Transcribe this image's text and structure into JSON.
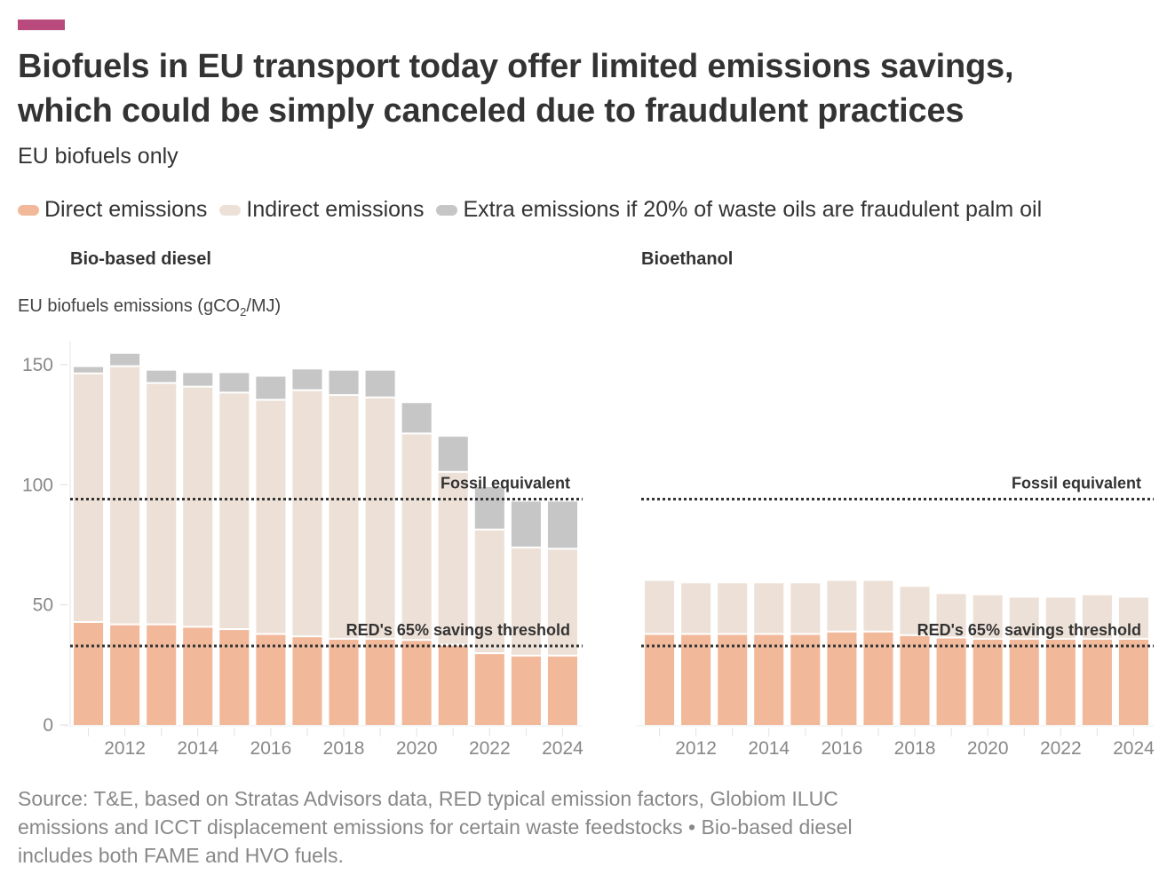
{
  "header": {
    "title_line1": "Biofuels in EU transport today offer limited emissions savings,",
    "title_line2": "which could be simply canceled due to fraudulent practices",
    "subtitle": "EU biofuels only",
    "accent_color": "#b94a7d"
  },
  "legend": [
    {
      "label": "Direct emissions",
      "color": "#f2b89a"
    },
    {
      "label": "Indirect emissions",
      "color": "#ede1d7"
    },
    {
      "label": "Extra emissions if 20% of waste oils are fraudulent palm oil",
      "color": "#c6c6c6"
    }
  ],
  "axis_title": {
    "text": "EU biofuels emissions (gCO",
    "sub": "2",
    "suffix": "/MJ)"
  },
  "footer": {
    "line1": "Source: T&E, based on Stratas Advisors data, RED typical emission factors, Globiom ILUC",
    "line2": "emissions and ICCT displacement emissions for certain waste feedstocks • Bio-based diesel",
    "line3": "includes both FAME and HVO fuels."
  },
  "chart_data": [
    {
      "type": "bar",
      "stacked": true,
      "title": "Bio-based diesel",
      "ylabel": "EU biofuels emissions (gCO2/MJ)",
      "ylim": [
        0,
        160
      ],
      "yticks": [
        0,
        50,
        100,
        150
      ],
      "categories": [
        2011,
        2012,
        2013,
        2014,
        2015,
        2016,
        2017,
        2018,
        2019,
        2020,
        2021,
        2022,
        2023,
        2024
      ],
      "xtick_labels": [
        "2012",
        "2014",
        "2016",
        "2018",
        "2020",
        "2022",
        "2024"
      ],
      "series": [
        {
          "name": "Direct emissions",
          "values": [
            42.5,
            41.5,
            41.5,
            40.5,
            39.5,
            37.5,
            36.5,
            35.5,
            35.5,
            35,
            33,
            29.5,
            28.5,
            28.5
          ]
        },
        {
          "name": "Indirect emissions",
          "values": [
            103.5,
            107.5,
            100.5,
            100,
            98.5,
            97.5,
            102.5,
            101.5,
            100.5,
            86,
            72,
            51.5,
            45,
            44.5
          ]
        },
        {
          "name": "Extra emissions if 20% of waste oils are fraudulent palm oil",
          "values": [
            3,
            5.5,
            5.5,
            6,
            8.5,
            10,
            9,
            10.5,
            11.5,
            13,
            15,
            18,
            19.5,
            20
          ]
        }
      ],
      "reference_lines": [
        {
          "label": "Fossil equivalent",
          "value": 94
        },
        {
          "label": "RED's 65% savings threshold",
          "value": 32.9
        }
      ],
      "grid": false
    },
    {
      "type": "bar",
      "stacked": true,
      "title": "Bioethanol",
      "ylim": [
        0,
        160
      ],
      "categories": [
        2011,
        2012,
        2013,
        2014,
        2015,
        2016,
        2017,
        2018,
        2019,
        2020,
        2021,
        2022,
        2023,
        2024
      ],
      "xtick_labels": [
        "2012",
        "2014",
        "2016",
        "2018",
        "2020",
        "2022",
        "2024"
      ],
      "series": [
        {
          "name": "Direct emissions",
          "values": [
            37.5,
            37.5,
            37.5,
            37.5,
            37.5,
            38.5,
            38.5,
            37,
            36,
            35.5,
            35.5,
            35.5,
            35.5,
            35.5
          ]
        },
        {
          "name": "Indirect emissions",
          "values": [
            22.5,
            21.5,
            21.5,
            21.5,
            21.5,
            21.5,
            21.5,
            20.5,
            18.5,
            18.5,
            17.5,
            17.5,
            18.5,
            17.5
          ]
        },
        {
          "name": "Extra emissions if 20% of waste oils are fraudulent palm oil",
          "values": [
            0,
            0,
            0,
            0,
            0,
            0,
            0,
            0,
            0,
            0,
            0,
            0,
            0,
            0
          ]
        }
      ],
      "reference_lines": [
        {
          "label": "Fossil equivalent",
          "value": 94
        },
        {
          "label": "RED's 65% savings threshold",
          "value": 32.9
        }
      ],
      "grid": false
    }
  ]
}
